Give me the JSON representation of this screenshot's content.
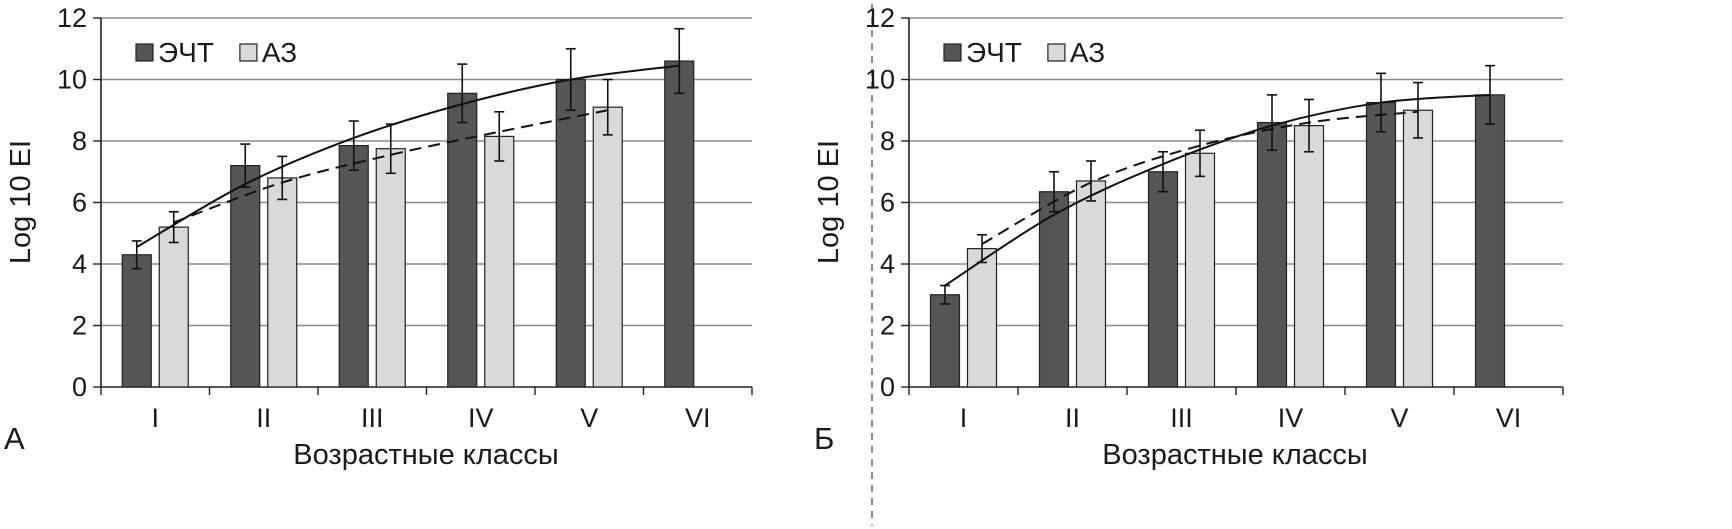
{
  "figure_divider": "dashed",
  "chart_data": [
    {
      "type": "bar",
      "panel_label": "А",
      "categories": [
        "I",
        "II",
        "III",
        "IV",
        "V",
        "VI"
      ],
      "xlabel": "Возрастные классы",
      "ylabel": "Log 10 EI",
      "ylim": [
        0,
        12
      ],
      "yticks": [
        0,
        2,
        4,
        6,
        8,
        10,
        12
      ],
      "grid": true,
      "legend_position": "top-left",
      "series": [
        {
          "name": "ЭЧТ",
          "color": "#555555",
          "values": [
            4.3,
            7.2,
            7.85,
            9.55,
            10.0,
            10.6
          ],
          "errors": [
            0.45,
            0.7,
            0.8,
            0.95,
            1.0,
            1.05
          ]
        },
        {
          "name": "АЗ",
          "color": "#d9d9d9",
          "values": [
            5.2,
            6.8,
            7.75,
            8.15,
            9.1,
            null
          ],
          "errors": [
            0.5,
            0.7,
            0.8,
            0.8,
            0.9,
            null
          ]
        }
      ],
      "trendlines": [
        {
          "series": "ЭЧТ",
          "style": "solid",
          "points": [
            [
              1,
              4.55
            ],
            [
              2,
              6.6
            ],
            [
              3,
              8.1
            ],
            [
              4,
              9.2
            ],
            [
              5,
              10.0
            ],
            [
              6,
              10.45
            ]
          ]
        },
        {
          "series": "АЗ",
          "style": "dashed",
          "points": [
            [
              1,
              5.35
            ],
            [
              2,
              6.65
            ],
            [
              3,
              7.55
            ],
            [
              4,
              8.3
            ],
            [
              5,
              9.0
            ]
          ]
        }
      ]
    },
    {
      "type": "bar",
      "panel_label": "Б",
      "categories": [
        "I",
        "II",
        "III",
        "IV",
        "V",
        "VI"
      ],
      "xlabel": "Возрастные классы",
      "ylabel": "Log 10 EI",
      "ylim": [
        0,
        12
      ],
      "yticks": [
        0,
        2,
        4,
        6,
        8,
        10,
        12
      ],
      "grid": true,
      "legend_position": "top-left",
      "series": [
        {
          "name": "ЭЧТ",
          "color": "#555555",
          "values": [
            3.0,
            6.35,
            7.0,
            8.6,
            9.25,
            9.5
          ],
          "errors": [
            0.3,
            0.65,
            0.65,
            0.9,
            0.95,
            0.95
          ]
        },
        {
          "name": "АЗ",
          "color": "#d9d9d9",
          "values": [
            4.5,
            6.7,
            7.6,
            8.5,
            9.0,
            null
          ],
          "errors": [
            0.45,
            0.65,
            0.75,
            0.85,
            0.9,
            null
          ]
        }
      ],
      "trendlines": [
        {
          "series": "ЭЧТ",
          "style": "solid",
          "points": [
            [
              1,
              3.3
            ],
            [
              2,
              5.6
            ],
            [
              3,
              7.25
            ],
            [
              4,
              8.5
            ],
            [
              5,
              9.25
            ],
            [
              6,
              9.5
            ]
          ]
        },
        {
          "series": "АЗ",
          "style": "dashed",
          "points": [
            [
              1,
              4.65
            ],
            [
              2,
              6.65
            ],
            [
              3,
              7.85
            ],
            [
              4,
              8.6
            ],
            [
              5,
              8.95
            ]
          ]
        }
      ]
    }
  ]
}
